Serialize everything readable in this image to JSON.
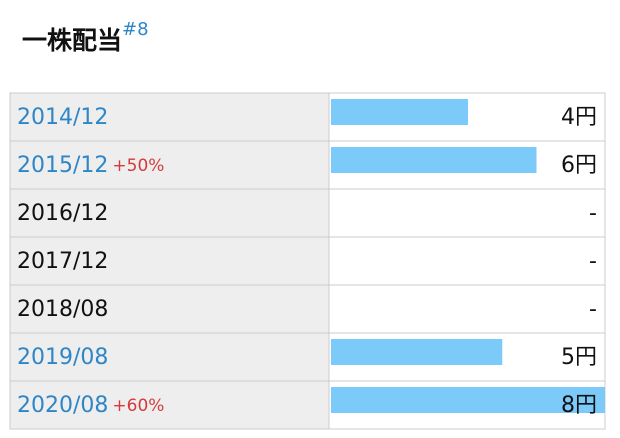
{
  "header": {
    "title": "一株配当",
    "tag": "#8"
  },
  "table": {
    "rows": [
      {
        "period": "2014/12",
        "value": 4,
        "value_label": "4円"
      },
      {
        "period": "2015/12",
        "change": "+50%",
        "value": 6,
        "value_label": "6円"
      },
      {
        "period": "2016/12",
        "value": null,
        "value_label": "-"
      },
      {
        "period": "2017/12",
        "value": null,
        "value_label": "-"
      },
      {
        "period": "2018/08",
        "value": null,
        "value_label": "-"
      },
      {
        "period": "2019/08",
        "value": 5,
        "value_label": "5円"
      },
      {
        "period": "2020/08",
        "change": "+60%",
        "value": 8,
        "value_label": "8円"
      }
    ],
    "bar_color": "#7ccafa"
  }
}
